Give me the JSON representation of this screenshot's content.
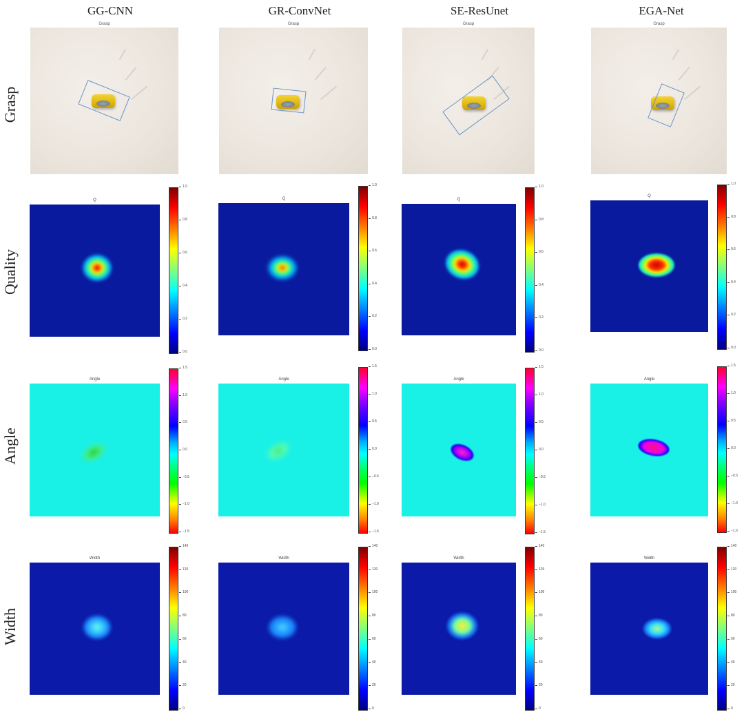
{
  "columns": [
    "GG-CNN",
    "GR-ConvNet",
    "SE-ResUnet",
    "EGA-Net"
  ],
  "rows": [
    "Grasp",
    "Quality",
    "Angle",
    "Width"
  ],
  "panel_titles": {
    "grasp": "Grasp",
    "quality": "Q",
    "angle": "Angle",
    "width": "Width"
  },
  "colorbars": {
    "quality": {
      "ticks": [
        "1.0",
        "0.8",
        "0.6",
        "0.4",
        "0.2",
        "0.0"
      ],
      "colormap": "jet"
    },
    "angle": {
      "ticks": [
        "1.5",
        "1.0",
        "0.5",
        "0.0",
        "−0.5",
        "−1.0",
        "−1.5"
      ],
      "colormap": "hsv"
    },
    "width": {
      "ticks": [
        "140",
        "120",
        "100",
        "80",
        "60",
        "40",
        "20",
        "0"
      ],
      "colormap": "jet"
    }
  },
  "colors": {
    "grasp_box": "#6b93c9",
    "tape": "#e6c21a",
    "map_bg": "#0a1a9e",
    "angle_bg": "#19f0e6"
  }
}
